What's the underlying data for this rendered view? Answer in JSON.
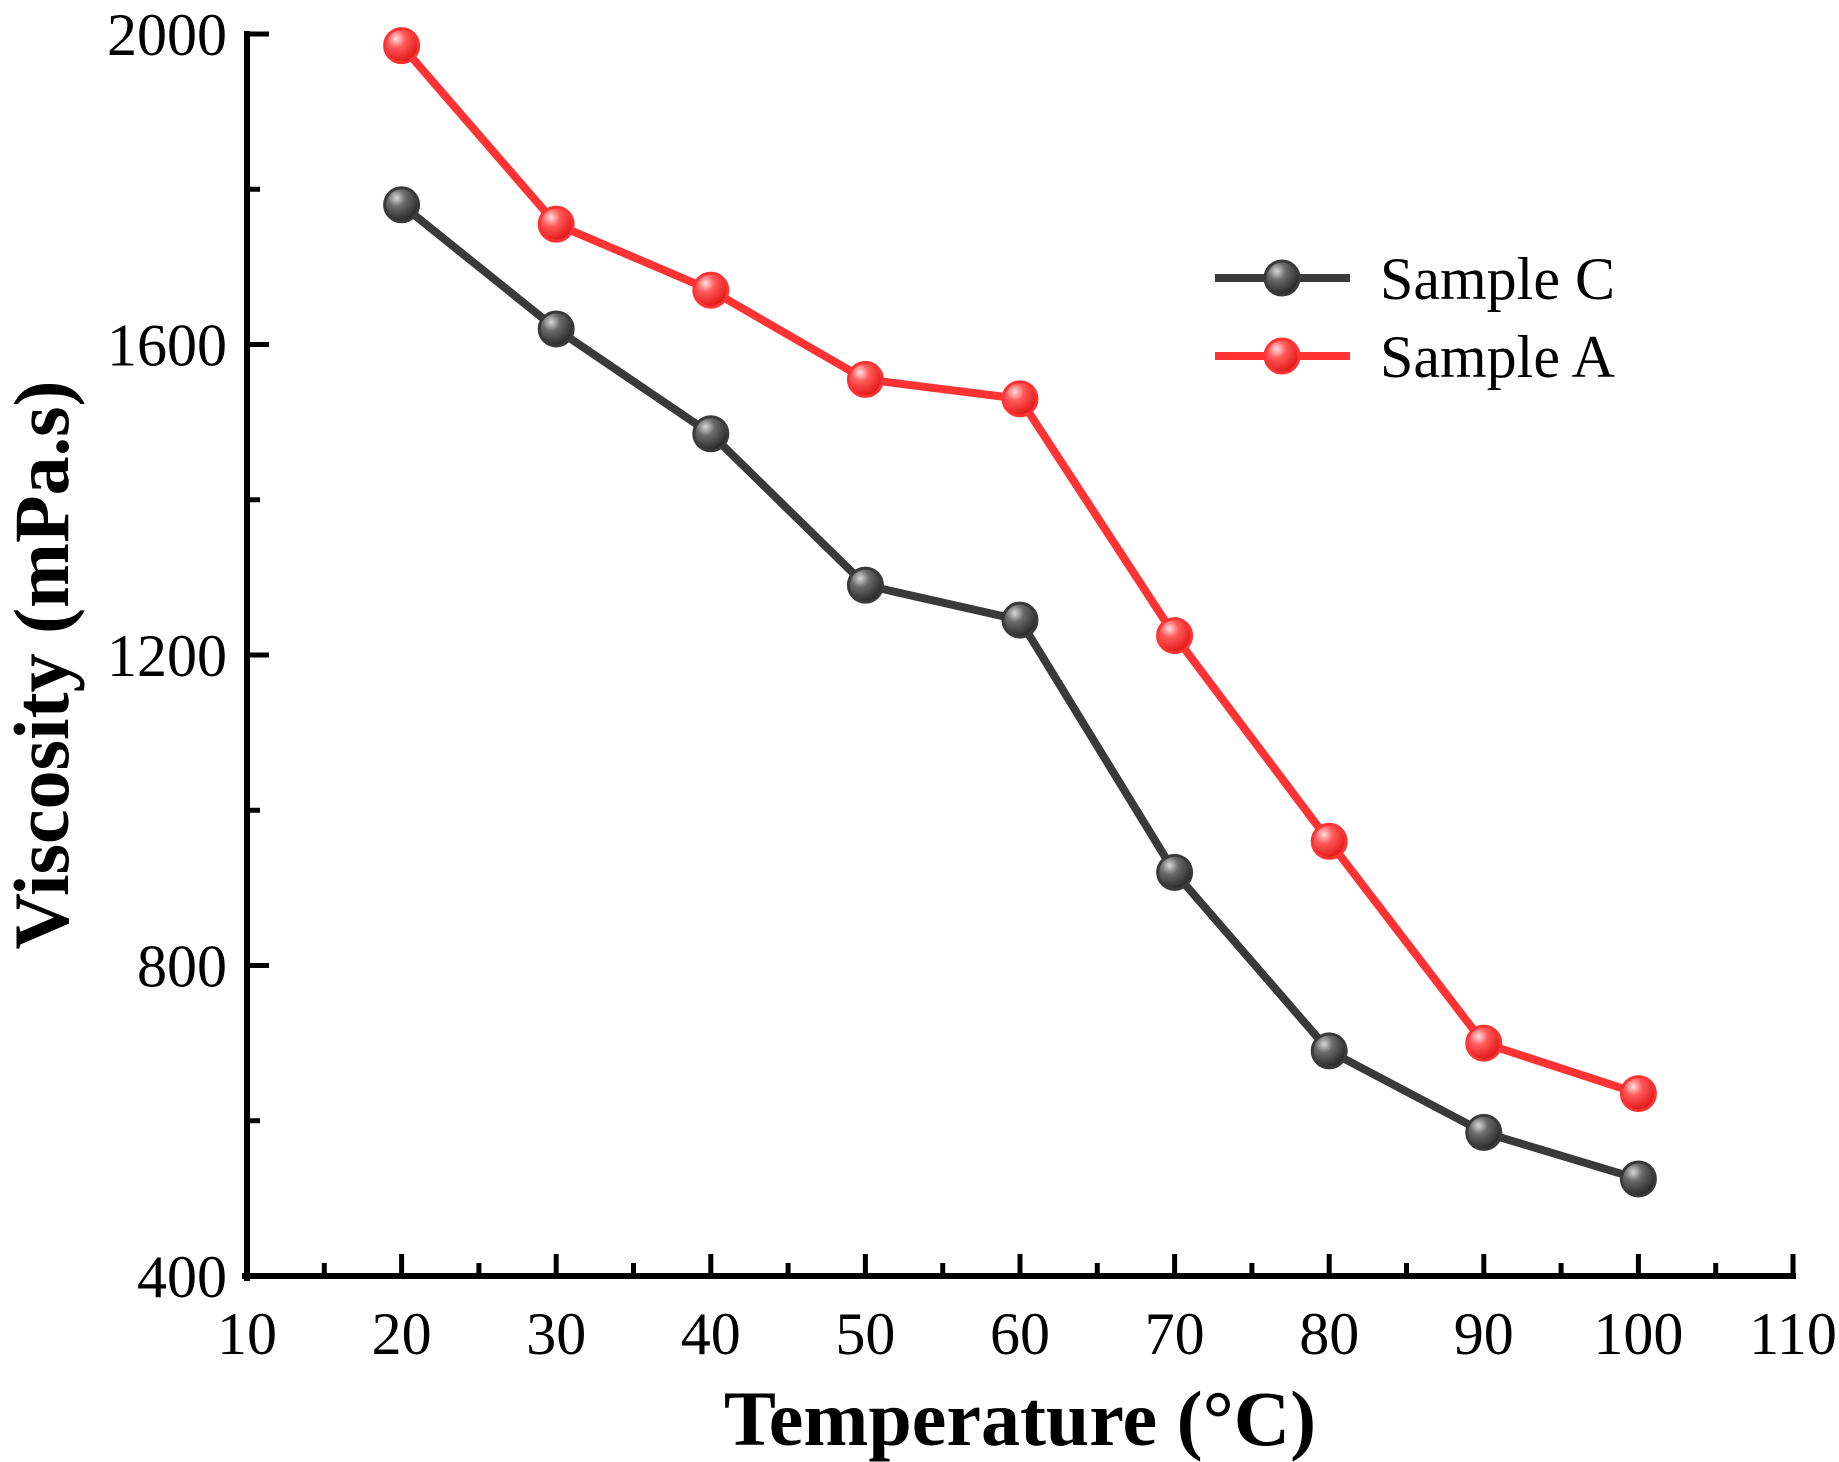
{
  "chart_data": {
    "type": "line",
    "xlabel": "Temperature (°C)",
    "ylabel": "Viscosity (mPa.s)",
    "xlim": [
      10,
      110
    ],
    "ylim": [
      400,
      2000
    ],
    "xticks": [
      10,
      20,
      30,
      40,
      50,
      60,
      70,
      80,
      90,
      100,
      110
    ],
    "yticks": [
      400,
      800,
      1200,
      1600,
      2000
    ],
    "grid": false,
    "legend_position": "top-right",
    "x": [
      20,
      30,
      40,
      50,
      60,
      70,
      80,
      90,
      100
    ],
    "series": [
      {
        "name": "Sample C",
        "color": "#3a3a3a",
        "values": [
          1780,
          1620,
          1485,
          1290,
          1245,
          920,
          690,
          585,
          525
        ]
      },
      {
        "name": "Sample A",
        "color": "#ff3333",
        "values": [
          1985,
          1755,
          1670,
          1555,
          1530,
          1225,
          960,
          700,
          635
        ]
      }
    ]
  }
}
